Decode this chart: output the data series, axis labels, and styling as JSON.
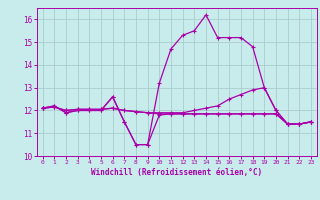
{
  "xlabel": "Windchill (Refroidissement éolien,°C)",
  "bg_color": "#c8ecec",
  "line_color": "#aa00aa",
  "grid_color": "#aacccc",
  "xlim": [
    -0.5,
    23.5
  ],
  "ylim": [
    10,
    16.5
  ],
  "yticks": [
    10,
    11,
    12,
    13,
    14,
    15,
    16
  ],
  "xticks": [
    0,
    1,
    2,
    3,
    4,
    5,
    6,
    7,
    8,
    9,
    10,
    11,
    12,
    13,
    14,
    15,
    16,
    17,
    18,
    19,
    20,
    21,
    22,
    23
  ],
  "line1_x": [
    0,
    1,
    2,
    3,
    4,
    5,
    6,
    7,
    8,
    9,
    10,
    11,
    12,
    13,
    14,
    15,
    16,
    17,
    18,
    19,
    20,
    21,
    22,
    23
  ],
  "line1_y": [
    12.1,
    12.2,
    11.9,
    12.0,
    12.0,
    12.0,
    12.6,
    11.5,
    10.5,
    10.5,
    11.8,
    11.85,
    11.85,
    11.85,
    11.85,
    11.85,
    11.85,
    11.85,
    11.85,
    11.85,
    11.85,
    11.4,
    11.4,
    11.5
  ],
  "line2_x": [
    0,
    1,
    2,
    3,
    4,
    5,
    6,
    7,
    8,
    9,
    10,
    11,
    12,
    13,
    14,
    15,
    16,
    17,
    18,
    19,
    20,
    21,
    22,
    23
  ],
  "line2_y": [
    12.1,
    12.2,
    11.9,
    12.0,
    12.0,
    12.0,
    12.6,
    11.5,
    10.5,
    10.5,
    13.2,
    14.7,
    15.3,
    15.5,
    16.2,
    15.2,
    15.2,
    15.2,
    14.8,
    13.0,
    12.0,
    11.4,
    11.4,
    11.5
  ],
  "line3_x": [
    0,
    1,
    2,
    3,
    4,
    5,
    6,
    7,
    8,
    9,
    10,
    11,
    12,
    13,
    14,
    15,
    16,
    17,
    18,
    19,
    20,
    21,
    22,
    23
  ],
  "line3_y": [
    12.1,
    12.15,
    12.0,
    12.05,
    12.05,
    12.05,
    12.1,
    12.0,
    11.95,
    11.9,
    11.9,
    11.9,
    11.9,
    12.0,
    12.1,
    12.2,
    12.5,
    12.7,
    12.9,
    13.0,
    12.0,
    11.4,
    11.4,
    11.5
  ],
  "line4_x": [
    0,
    1,
    2,
    3,
    4,
    5,
    6,
    7,
    8,
    9,
    10,
    11,
    12,
    13,
    14,
    15,
    16,
    17,
    18,
    19,
    20,
    21,
    22,
    23
  ],
  "line4_y": [
    12.1,
    12.15,
    12.0,
    12.05,
    12.05,
    12.05,
    12.1,
    12.0,
    11.95,
    11.9,
    11.85,
    11.85,
    11.85,
    11.85,
    11.85,
    11.85,
    11.85,
    11.85,
    11.85,
    11.85,
    11.85,
    11.4,
    11.4,
    11.5
  ]
}
